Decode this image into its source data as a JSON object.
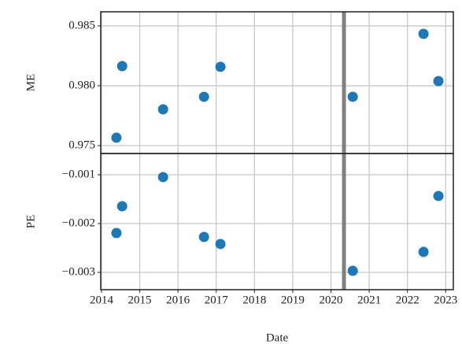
{
  "chart_data": [
    {
      "type": "scatter",
      "ylabel": "ME",
      "x": [
        2014.39,
        2014.54,
        2015.61,
        2016.68,
        2017.11,
        2020.57,
        2022.42,
        2022.81
      ],
      "series": [
        {
          "color": "#1f77b4",
          "values": [
            0.97566,
            0.98164,
            0.97803,
            0.97908,
            0.98158,
            0.97908,
            0.98434,
            0.98039
          ]
        }
      ],
      "xlim": [
        2013.98,
        2023.2
      ],
      "xticks": [
        2014,
        2015,
        2016,
        2017,
        2018,
        2019,
        2020,
        2021,
        2022,
        2023
      ],
      "ylim": [
        0.97434,
        0.98618
      ],
      "yticks": [
        0.975,
        {
          "value": 0.98,
          "label": "0.980"
        },
        0.985
      ],
      "vline": 2020.34,
      "vline_color": "#808080",
      "grid": true
    },
    {
      "type": "scatter",
      "ylabel": "PE",
      "xlabel": "Date",
      "x": [
        2014.39,
        2014.54,
        2015.61,
        2016.68,
        2017.11,
        2020.57,
        2022.42,
        2022.81
      ],
      "series": [
        {
          "color": "#1f77b4",
          "values": [
            -0.002194,
            -0.001645,
            -0.001048,
            -0.002274,
            -0.002419,
            -0.002968,
            -0.002581,
            -0.001435
          ]
        }
      ],
      "xlim": [
        2013.98,
        2023.2
      ],
      "xticks": [
        2014,
        2015,
        2016,
        2017,
        2018,
        2019,
        2020,
        2021,
        2022,
        2023
      ],
      "ylim": [
        -0.003355,
        -0.000565
      ],
      "yticks": [
        {
          "value": -0.003,
          "label": "−0.003"
        },
        {
          "value": -0.002,
          "label": "−0.002"
        },
        {
          "value": -0.001,
          "label": "−0.001"
        }
      ],
      "vline": 2020.34,
      "vline_color": "#808080",
      "grid": true
    }
  ]
}
